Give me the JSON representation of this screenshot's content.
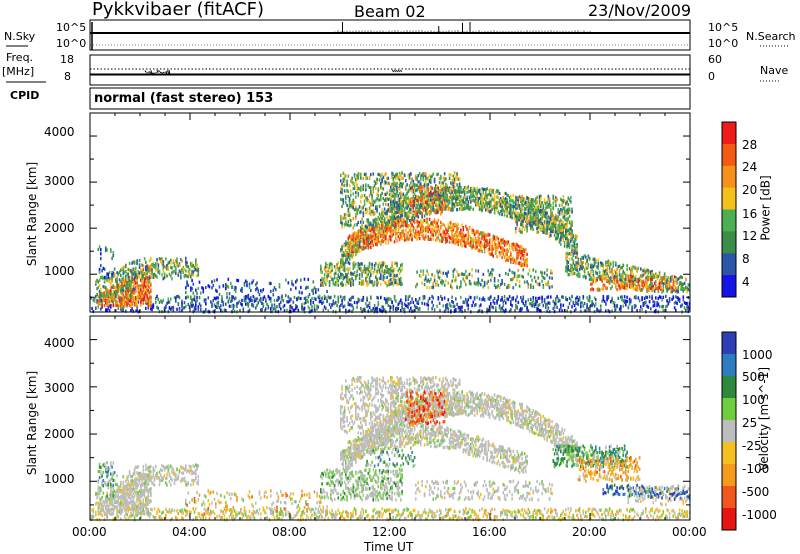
{
  "header": {
    "radar": "Pykkvibaer (fitACF)",
    "beam": "Beam 02",
    "date": "23/Nov/2009"
  },
  "top_panels": {
    "nsky_label": "N.Sky",
    "nsky_ticks": [
      "10^5",
      "10^0"
    ],
    "nsearch_label": "N.Search",
    "nsearch_ticks": [
      "10^5",
      "10^0"
    ],
    "freq_label": "Freq.",
    "freq_unit": "[MHz]",
    "freq_ticks": [
      "18",
      "8"
    ],
    "nave_label": "Nave",
    "nave_ticks": [
      "60",
      "0"
    ],
    "cpid_label": "CPID",
    "cpid_text": "normal (fast stereo) 153"
  },
  "chart_data": [
    {
      "type": "heatmap",
      "name": "Power",
      "ylabel": "Slant Range [km]",
      "yticks": [
        "4000",
        "3000",
        "2000",
        "1000"
      ],
      "ylim": [
        180,
        4500
      ],
      "colorbar_label": "Power [dB]",
      "colorbar_ticks": [
        "28",
        "24",
        "20",
        "16",
        "12",
        "8",
        "4"
      ],
      "colorbar_colors": [
        "#ee1b1b",
        "#f55a14",
        "#f6921c",
        "#f3c11a",
        "#4caf52",
        "#3c8d4a",
        "#2a55a8",
        "#1414e6"
      ]
    },
    {
      "type": "heatmap",
      "name": "Velocity",
      "ylabel": "Slant Range [km]",
      "yticks": [
        "4000",
        "3000",
        "2000",
        "1000"
      ],
      "ylim": [
        180,
        4500
      ],
      "colorbar_label": "Velocity [m s^-1]",
      "colorbar_ticks": [
        "1000",
        "500",
        "100",
        "25",
        "-25",
        "-100",
        "-500",
        "-1000"
      ],
      "colorbar_colors": [
        "#2d3fb4",
        "#2d7cc0",
        "#2d8a3c",
        "#6fce3e",
        "#bdbdbd",
        "#f2c020",
        "#f59a1c",
        "#f2561c",
        "#e61414"
      ]
    }
  ],
  "xaxis": {
    "ticks": [
      "00:00",
      "04:00",
      "08:00",
      "12:00",
      "16:00",
      "20:00",
      "00:00"
    ],
    "label": "Time UT"
  }
}
